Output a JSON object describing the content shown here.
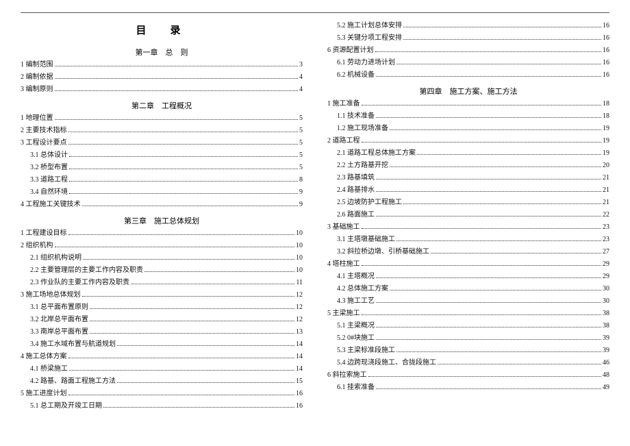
{
  "title": "目　录",
  "chapters": [
    "第一章　总　则",
    "第二章　工程概况",
    "第三章　施工总体规划",
    "第四章　施工方案、施工方法"
  ],
  "left": [
    {
      "type": "chapter",
      "idx": 0
    },
    {
      "label": "1 编制范围",
      "page": "3",
      "indent": 0
    },
    {
      "label": "2 编制依据",
      "page": "4",
      "indent": 0
    },
    {
      "label": "3 编制原则",
      "page": "4",
      "indent": 0
    },
    {
      "type": "chapter",
      "idx": 1
    },
    {
      "label": "1 地理位置",
      "page": "5",
      "indent": 0
    },
    {
      "label": "2 主要技术指标",
      "page": "5",
      "indent": 0
    },
    {
      "label": "3 工程设计要点",
      "page": "5",
      "indent": 0
    },
    {
      "label": "3.1 总体设计",
      "page": "5",
      "indent": 1
    },
    {
      "label": "3.2 桥型布置",
      "page": "5",
      "indent": 1
    },
    {
      "label": "3.3 道路工程",
      "page": "8",
      "indent": 1
    },
    {
      "label": "3.4 自然环境",
      "page": "9",
      "indent": 1
    },
    {
      "label": "4 工程施工关键技术",
      "page": "9",
      "indent": 0
    },
    {
      "type": "chapter",
      "idx": 2
    },
    {
      "label": "1 工程建设目标",
      "page": "10",
      "indent": 0
    },
    {
      "label": "2 组织机构",
      "page": "10",
      "indent": 0
    },
    {
      "label": "2.1 组织机构说明",
      "page": "10",
      "indent": 1
    },
    {
      "label": "2.2 主要管理层的主要工作内容及职责",
      "page": "10",
      "indent": 1
    },
    {
      "label": "2.3 作业队的主要工作内容及职责",
      "page": "11",
      "indent": 1
    },
    {
      "label": "3 施工场地总体规划",
      "page": "12",
      "indent": 0
    },
    {
      "label": "3.1 总平面布置原则",
      "page": "12",
      "indent": 1
    },
    {
      "label": "3.2 北岸总平面布置",
      "page": "12",
      "indent": 1
    },
    {
      "label": "3.3 南岸总平面布置",
      "page": "13",
      "indent": 1
    },
    {
      "label": "3.4 施工水域布置与航道规划",
      "page": "14",
      "indent": 1
    },
    {
      "label": "4 施工总体方案",
      "page": "14",
      "indent": 0
    },
    {
      "label": "4.1 桥梁施工",
      "page": "14",
      "indent": 1
    },
    {
      "label": "4.2 路基、路面工程施工方法",
      "page": "15",
      "indent": 1
    },
    {
      "label": "5 施工进度计划",
      "page": "16",
      "indent": 0
    },
    {
      "label": "5.1 总工期及开竣工日期",
      "page": "16",
      "indent": 1
    }
  ],
  "right": [
    {
      "label": "5.2 施工计划总体安排",
      "page": "16",
      "indent": 1
    },
    {
      "label": "5.3 关键分项工程安排",
      "page": "16",
      "indent": 1
    },
    {
      "label": "6 资源配置计划",
      "page": "16",
      "indent": 0
    },
    {
      "label": "6.1 劳动力进场计划",
      "page": "16",
      "indent": 1
    },
    {
      "label": "6.2 机械设备",
      "page": "16",
      "indent": 1
    },
    {
      "type": "chapter",
      "idx": 3
    },
    {
      "label": "1 施工准备",
      "page": "18",
      "indent": 0
    },
    {
      "label": "1.1 技术准备",
      "page": "18",
      "indent": 1
    },
    {
      "label": "1.2 施工现场准备",
      "page": "19",
      "indent": 1
    },
    {
      "label": "2 道路工程",
      "page": "19",
      "indent": 0
    },
    {
      "label": "2.1 道路工程总体施工方案",
      "page": "19",
      "indent": 1
    },
    {
      "label": "2.2 土方路基开挖",
      "page": "20",
      "indent": 1
    },
    {
      "label": "2.3 路基填筑",
      "page": "21",
      "indent": 1
    },
    {
      "label": "2.4 路基排水",
      "page": "21",
      "indent": 1
    },
    {
      "label": "2.5 边坡防护工程施工",
      "page": "21",
      "indent": 1
    },
    {
      "label": "2.6 路面施工",
      "page": "22",
      "indent": 1
    },
    {
      "label": "3 基础施工",
      "page": "23",
      "indent": 0
    },
    {
      "label": "3.1 主塔墩基础施工",
      "page": "23",
      "indent": 1
    },
    {
      "label": "3.2 斜拉桥边墩、引桥基础施工",
      "page": "27",
      "indent": 1
    },
    {
      "label": "4 塔柱施工",
      "page": "29",
      "indent": 0
    },
    {
      "label": "4.1 主塔概况",
      "page": "29",
      "indent": 1
    },
    {
      "label": "4.2 总体施工方案",
      "page": "30",
      "indent": 1
    },
    {
      "label": "4.3 施工工艺",
      "page": "30",
      "indent": 1
    },
    {
      "label": "5 主梁施工",
      "page": "38",
      "indent": 0
    },
    {
      "label": "5.1 主梁概况",
      "page": "38",
      "indent": 1
    },
    {
      "label": "5.2 0#块施工",
      "page": "39",
      "indent": 1
    },
    {
      "label": "5.3 主梁标准段施工",
      "page": "39",
      "indent": 1
    },
    {
      "label": "5.4 边跨现浇段施工、合拢段施工",
      "page": "46",
      "indent": 1
    },
    {
      "label": "6 斜拉索施工",
      "page": "48",
      "indent": 0
    },
    {
      "label": "6.1 挂索准备",
      "page": "49",
      "indent": 1
    }
  ]
}
